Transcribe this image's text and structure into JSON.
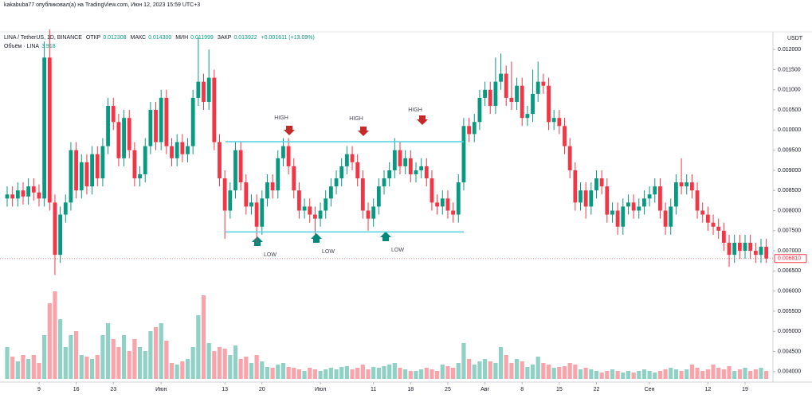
{
  "header": "kakabuba77 опубликовал(а) на TradingView.com, Июн 12, 2023 15:59 UTC+3",
  "legend": {
    "symbol": "LINA / TetherUS, 1D, BINANCE",
    "open_label": "ОТКР",
    "open": "0.012308",
    "high_label": "МАКС",
    "high": "0.014300",
    "low_label": "МИН",
    "low": "0.011999",
    "close_label": "ЗАКР",
    "close": "0.013922",
    "change": "+0.001611 (+13.09%)",
    "volume_label": "Объём · LINA",
    "volume_value": "3.918"
  },
  "chart_data": {
    "type": "candlestick",
    "currency": "USDT",
    "up_color": "#089981",
    "down_color": "#f23645",
    "grid": false,
    "ylim": [
      0.00374,
      0.01234
    ],
    "yticks": [
      {
        "value": 0.012,
        "label": "0.012000"
      },
      {
        "value": 0.0115,
        "label": "0.011500"
      },
      {
        "value": 0.011,
        "label": "0.011000"
      },
      {
        "value": 0.0105,
        "label": "0.010500"
      },
      {
        "value": 0.01,
        "label": "0.010000"
      },
      {
        "value": 0.0095,
        "label": "0.009500"
      },
      {
        "value": 0.009,
        "label": "0.009000"
      },
      {
        "value": 0.0085,
        "label": "0.008500"
      },
      {
        "value": 0.008,
        "label": "0.008000"
      },
      {
        "value": 0.0075,
        "label": "0.007500"
      },
      {
        "value": 0.007,
        "label": "0.007000"
      },
      {
        "value": 0.0065,
        "label": "0.006500"
      },
      {
        "value": 0.006,
        "label": "0.006000"
      },
      {
        "value": 0.0055,
        "label": "0.005500"
      },
      {
        "value": 0.005,
        "label": "0.005000"
      },
      {
        "value": 0.0045,
        "label": "0.004500"
      },
      {
        "value": 0.004,
        "label": "0.004000"
      }
    ],
    "xticks": [
      {
        "value": 6,
        "label": "9"
      },
      {
        "value": 13,
        "label": "16"
      },
      {
        "value": 20,
        "label": "23"
      },
      {
        "value": 29,
        "label": "Июн"
      },
      {
        "value": 41,
        "label": "13"
      },
      {
        "value": 48,
        "label": "20"
      },
      {
        "value": 59,
        "label": "Июл"
      },
      {
        "value": 69,
        "label": "11"
      },
      {
        "value": 76,
        "label": "18"
      },
      {
        "value": 83,
        "label": "25"
      },
      {
        "value": 90,
        "label": "Авг"
      },
      {
        "value": 97,
        "label": "8"
      },
      {
        "value": 104,
        "label": "15"
      },
      {
        "value": 111,
        "label": "22"
      },
      {
        "value": 121,
        "label": "Сен"
      },
      {
        "value": 132,
        "label": "12"
      },
      {
        "value": 139,
        "label": "19"
      }
    ],
    "last_label": "0.006810",
    "levels": [
      {
        "value": 0.00971,
        "color": "#4dd0e1"
      },
      {
        "value": 0.00747,
        "color": "#4dd0e1"
      }
    ],
    "annotations": [
      "HIGH",
      "HIGH",
      "HIGH",
      "LOW",
      "LOW",
      "LOW"
    ],
    "ohlc": [
      [
        0.0083,
        0.0086,
        0.0081,
        0.0084
      ],
      [
        0.0084,
        0.0086,
        0.0081,
        0.0083
      ],
      [
        0.0083,
        0.0087,
        0.0081,
        0.0085
      ],
      [
        0.0085,
        0.0087,
        0.00815,
        0.00835
      ],
      [
        0.00835,
        0.0088,
        0.00815,
        0.0086
      ],
      [
        0.0086,
        0.0088,
        0.00825,
        0.00845
      ],
      [
        0.00845,
        0.00865,
        0.0081,
        0.0083
      ],
      [
        0.0083,
        0.0122,
        0.0081,
        0.0118
      ],
      [
        0.0118,
        0.0125,
        0.008,
        0.0082
      ],
      [
        0.0082,
        0.0084,
        0.0064,
        0.0069
      ],
      [
        0.0069,
        0.0081,
        0.0067,
        0.0079
      ],
      [
        0.0079,
        0.0084,
        0.0077,
        0.0082
      ],
      [
        0.0082,
        0.0097,
        0.008,
        0.0095
      ],
      [
        0.0095,
        0.0097,
        0.0083,
        0.0085
      ],
      [
        0.0085,
        0.0094,
        0.0083,
        0.0092
      ],
      [
        0.0092,
        0.0094,
        0.0084,
        0.0086
      ],
      [
        0.0086,
        0.0096,
        0.0084,
        0.0094
      ],
      [
        0.0094,
        0.0096,
        0.0086,
        0.0088
      ],
      [
        0.0088,
        0.0098,
        0.0086,
        0.0096
      ],
      [
        0.0096,
        0.0108,
        0.0094,
        0.0106
      ],
      [
        0.0106,
        0.0108,
        0.01,
        0.0102
      ],
      [
        0.0102,
        0.0104,
        0.0091,
        0.0093
      ],
      [
        0.0093,
        0.0105,
        0.0091,
        0.0103
      ],
      [
        0.0103,
        0.0105,
        0.0093,
        0.0095
      ],
      [
        0.0095,
        0.0097,
        0.0086,
        0.0088
      ],
      [
        0.0088,
        0.0091,
        0.0086,
        0.0089
      ],
      [
        0.0089,
        0.0098,
        0.0087,
        0.0096
      ],
      [
        0.0096,
        0.0107,
        0.0094,
        0.0105
      ],
      [
        0.0105,
        0.0107,
        0.0095,
        0.0097
      ],
      [
        0.0097,
        0.011,
        0.0095,
        0.0108
      ],
      [
        0.0108,
        0.011,
        0.0094,
        0.0096
      ],
      [
        0.0096,
        0.0098,
        0.0091,
        0.0093
      ],
      [
        0.0093,
        0.0099,
        0.0091,
        0.0097
      ],
      [
        0.0097,
        0.0099,
        0.0092,
        0.0094
      ],
      [
        0.0094,
        0.0098,
        0.0092,
        0.0096
      ],
      [
        0.0096,
        0.011,
        0.0094,
        0.0108
      ],
      [
        0.0108,
        0.0123,
        0.0106,
        0.0112
      ],
      [
        0.0112,
        0.0114,
        0.0105,
        0.0107
      ],
      [
        0.0107,
        0.012,
        0.0105,
        0.0113
      ],
      [
        0.0113,
        0.0115,
        0.0095,
        0.0097
      ],
      [
        0.0097,
        0.0099,
        0.0086,
        0.0088
      ],
      [
        0.0088,
        0.009,
        0.0073,
        0.008
      ],
      [
        0.008,
        0.0087,
        0.0078,
        0.0085
      ],
      [
        0.0085,
        0.0097,
        0.0083,
        0.0095
      ],
      [
        0.0095,
        0.0097,
        0.0085,
        0.0087
      ],
      [
        0.0087,
        0.0089,
        0.0079,
        0.0081
      ],
      [
        0.0081,
        0.0084,
        0.0079,
        0.0082
      ],
      [
        0.0082,
        0.0084,
        0.0072,
        0.0076
      ],
      [
        0.0076,
        0.0085,
        0.0074,
        0.0083
      ],
      [
        0.0083,
        0.0089,
        0.0081,
        0.0087
      ],
      [
        0.0087,
        0.0089,
        0.0083,
        0.0085
      ],
      [
        0.0085,
        0.0095,
        0.0083,
        0.0093
      ],
      [
        0.0093,
        0.0098,
        0.0091,
        0.0096
      ],
      [
        0.0096,
        0.0098,
        0.0089,
        0.0091
      ],
      [
        0.0091,
        0.0093,
        0.0083,
        0.0085
      ],
      [
        0.0085,
        0.0087,
        0.0078,
        0.008
      ],
      [
        0.008,
        0.0083,
        0.0078,
        0.0081
      ],
      [
        0.0081,
        0.0083,
        0.0077,
        0.0079
      ],
      [
        0.0079,
        0.0081,
        0.0074,
        0.0078
      ],
      [
        0.0078,
        0.0082,
        0.0076,
        0.008
      ],
      [
        0.008,
        0.0085,
        0.0078,
        0.0083
      ],
      [
        0.0083,
        0.0088,
        0.0081,
        0.0086
      ],
      [
        0.0086,
        0.009,
        0.0084,
        0.0088
      ],
      [
        0.0088,
        0.0093,
        0.0086,
        0.0091
      ],
      [
        0.0091,
        0.0096,
        0.0089,
        0.0094
      ],
      [
        0.0094,
        0.0096,
        0.009,
        0.0092
      ],
      [
        0.0092,
        0.0094,
        0.0086,
        0.0088
      ],
      [
        0.0088,
        0.009,
        0.0078,
        0.008
      ],
      [
        0.008,
        0.0082,
        0.0075,
        0.0078
      ],
      [
        0.0078,
        0.0083,
        0.0076,
        0.0081
      ],
      [
        0.0081,
        0.0088,
        0.0079,
        0.0086
      ],
      [
        0.0086,
        0.009,
        0.0084,
        0.0088
      ],
      [
        0.0088,
        0.0092,
        0.0086,
        0.009
      ],
      [
        0.009,
        0.0098,
        0.0088,
        0.0095
      ],
      [
        0.0095,
        0.0097,
        0.0089,
        0.0091
      ],
      [
        0.0091,
        0.0095,
        0.0089,
        0.0093
      ],
      [
        0.0093,
        0.0095,
        0.0087,
        0.0089
      ],
      [
        0.0089,
        0.0092,
        0.0087,
        0.009
      ],
      [
        0.009,
        0.0093,
        0.0088,
        0.0091
      ],
      [
        0.0091,
        0.0093,
        0.0086,
        0.0088
      ],
      [
        0.0088,
        0.009,
        0.008,
        0.0082
      ],
      [
        0.0082,
        0.0084,
        0.0079,
        0.0081
      ],
      [
        0.0081,
        0.0085,
        0.0079,
        0.0083
      ],
      [
        0.0083,
        0.0085,
        0.0078,
        0.008
      ],
      [
        0.008,
        0.0082,
        0.0077,
        0.0079
      ],
      [
        0.0079,
        0.0089,
        0.0077,
        0.0087
      ],
      [
        0.0087,
        0.0103,
        0.0085,
        0.0101
      ],
      [
        0.0101,
        0.0103,
        0.0097,
        0.0099
      ],
      [
        0.0099,
        0.0104,
        0.0097,
        0.0102
      ],
      [
        0.0102,
        0.011,
        0.01,
        0.0108
      ],
      [
        0.0108,
        0.0112,
        0.0106,
        0.011
      ],
      [
        0.011,
        0.0112,
        0.0104,
        0.0106
      ],
      [
        0.0106,
        0.0118,
        0.0104,
        0.0112
      ],
      [
        0.0112,
        0.0119,
        0.011,
        0.0114
      ],
      [
        0.0114,
        0.0116,
        0.0106,
        0.0108
      ],
      [
        0.0108,
        0.0117,
        0.0105,
        0.0107
      ],
      [
        0.0107,
        0.0113,
        0.0105,
        0.0111
      ],
      [
        0.0111,
        0.0113,
        0.0101,
        0.0103
      ],
      [
        0.0103,
        0.0106,
        0.0101,
        0.0104
      ],
      [
        0.0104,
        0.0115,
        0.0102,
        0.0109
      ],
      [
        0.0109,
        0.0117,
        0.0107,
        0.0112
      ],
      [
        0.0112,
        0.0114,
        0.0109,
        0.0111
      ],
      [
        0.0111,
        0.0113,
        0.01,
        0.0102
      ],
      [
        0.0102,
        0.0105,
        0.01,
        0.0103
      ],
      [
        0.0103,
        0.0105,
        0.0099,
        0.0101
      ],
      [
        0.0101,
        0.0103,
        0.0094,
        0.0096
      ],
      [
        0.0096,
        0.0098,
        0.0088,
        0.009
      ],
      [
        0.009,
        0.0092,
        0.008,
        0.0082
      ],
      [
        0.0082,
        0.0087,
        0.008,
        0.0085
      ],
      [
        0.0085,
        0.0087,
        0.0078,
        0.0081
      ],
      [
        0.0081,
        0.0087,
        0.0079,
        0.0085
      ],
      [
        0.0085,
        0.009,
        0.0083,
        0.0088
      ],
      [
        0.0088,
        0.009,
        0.0084,
        0.0086
      ],
      [
        0.0086,
        0.0088,
        0.0077,
        0.0079
      ],
      [
        0.0079,
        0.0082,
        0.0077,
        0.008
      ],
      [
        0.008,
        0.0082,
        0.0074,
        0.0076
      ],
      [
        0.0076,
        0.0083,
        0.0074,
        0.0081
      ],
      [
        0.0081,
        0.0084,
        0.0079,
        0.0082
      ],
      [
        0.0082,
        0.0084,
        0.0078,
        0.008
      ],
      [
        0.008,
        0.0083,
        0.0078,
        0.0081
      ],
      [
        0.0081,
        0.0085,
        0.0079,
        0.0083
      ],
      [
        0.0083,
        0.0086,
        0.0081,
        0.0084
      ],
      [
        0.0084,
        0.0088,
        0.0082,
        0.0086
      ],
      [
        0.0086,
        0.0088,
        0.0078,
        0.008
      ],
      [
        0.008,
        0.0082,
        0.0074,
        0.0076
      ],
      [
        0.0076,
        0.0083,
        0.0074,
        0.0081
      ],
      [
        0.0081,
        0.0089,
        0.0079,
        0.0087
      ],
      [
        0.0087,
        0.0093,
        0.0084,
        0.0086
      ],
      [
        0.0086,
        0.0089,
        0.0084,
        0.0087
      ],
      [
        0.0087,
        0.0089,
        0.0083,
        0.0085
      ],
      [
        0.0085,
        0.0087,
        0.0078,
        0.008
      ],
      [
        0.008,
        0.0082,
        0.0077,
        0.0079
      ],
      [
        0.0079,
        0.0081,
        0.0075,
        0.0077
      ],
      [
        0.0077,
        0.0079,
        0.0074,
        0.0076
      ],
      [
        0.0076,
        0.0078,
        0.0073,
        0.0075
      ],
      [
        0.0075,
        0.0077,
        0.007,
        0.0072
      ],
      [
        0.0072,
        0.0074,
        0.0066,
        0.0069
      ],
      [
        0.0069,
        0.0074,
        0.0067,
        0.0072
      ],
      [
        0.0072,
        0.0074,
        0.0068,
        0.007
      ],
      [
        0.007,
        0.0074,
        0.0068,
        0.0072
      ],
      [
        0.0072,
        0.0074,
        0.0068,
        0.007
      ],
      [
        0.007,
        0.0072,
        0.0067,
        0.0069
      ],
      [
        0.0069,
        0.0073,
        0.0067,
        0.0071
      ],
      [
        0.0071,
        0.0073,
        0.0067,
        0.00681
      ]
    ],
    "volume": [
      40,
      28,
      22,
      30,
      25,
      30,
      20,
      55,
      95,
      110,
      75,
      40,
      55,
      60,
      30,
      28,
      25,
      30,
      55,
      70,
      50,
      40,
      55,
      35,
      50,
      40,
      35,
      60,
      65,
      70,
      48,
      20,
      18,
      22,
      25,
      40,
      80,
      105,
      45,
      35,
      40,
      38,
      30,
      42,
      25,
      28,
      20,
      30,
      22,
      15,
      14,
      18,
      20,
      15,
      14,
      12,
      10,
      14,
      12,
      10,
      12,
      14,
      12,
      15,
      16,
      12,
      14,
      18,
      12,
      15,
      14,
      16,
      18,
      20,
      14,
      12,
      10,
      10,
      12,
      14,
      12,
      10,
      18,
      16,
      14,
      20,
      45,
      25,
      18,
      22,
      25,
      22,
      20,
      40,
      30,
      20,
      25,
      22,
      15,
      18,
      28,
      20,
      18,
      14,
      15,
      16,
      20,
      18,
      12,
      14,
      12,
      10,
      8,
      10,
      12,
      10,
      8,
      10,
      8,
      10,
      12,
      10,
      8,
      10,
      12,
      14,
      12,
      10,
      12,
      18,
      14,
      10,
      12,
      18,
      14,
      12,
      16,
      10,
      12,
      14,
      10,
      12,
      14,
      10
    ]
  }
}
